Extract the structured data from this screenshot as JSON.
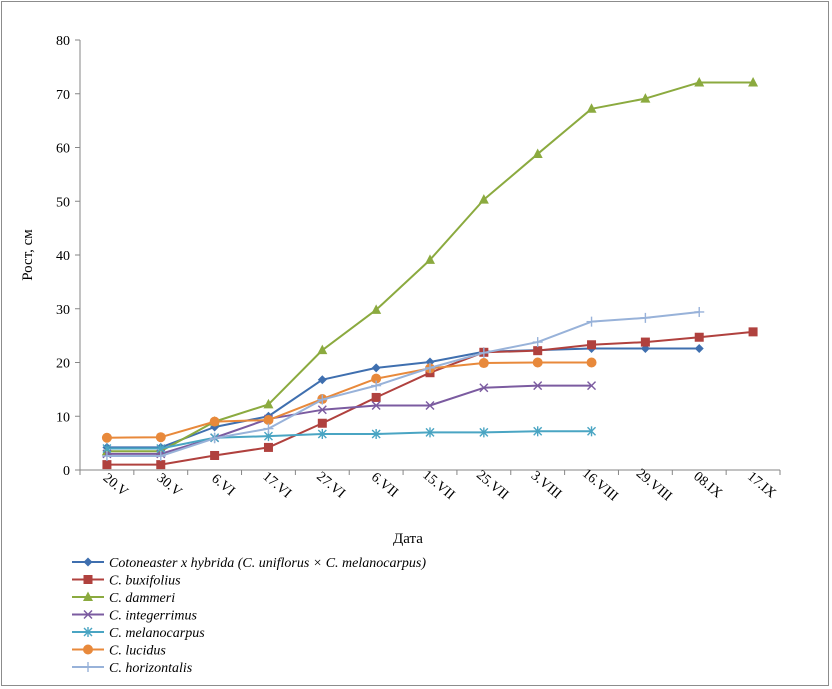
{
  "chart_data": {
    "type": "line",
    "title": "",
    "xlabel": "Дата",
    "ylabel": "Рост, см",
    "ylim": [
      0,
      80
    ],
    "yticks": [
      0,
      10,
      20,
      30,
      40,
      50,
      60,
      70,
      80
    ],
    "categories": [
      "20.V",
      "30.V",
      "6.VI",
      "17.VI",
      "27.VI",
      "6.VII",
      "15.VII",
      "25.VII",
      "3.VIII",
      "16.VIII",
      "29.VIII",
      "08.IX",
      "17.IX"
    ],
    "legend_position": "bottom-left",
    "series": [
      {
        "name": "Cotoneaster x hybrida (C. uniflorus × C. melanocarpus)",
        "color": "#3F6FAF",
        "marker": "diamond",
        "values": [
          4.2,
          4.2,
          8.0,
          10.0,
          16.8,
          19.0,
          20.1,
          22.0,
          22.3,
          22.6,
          22.6,
          22.6,
          null
        ]
      },
      {
        "name": "C. buxifolius",
        "color": "#B0413E",
        "marker": "square",
        "values": [
          1.0,
          1.0,
          2.7,
          4.2,
          8.7,
          13.5,
          18.1,
          21.9,
          22.2,
          23.3,
          23.8,
          24.7,
          25.7
        ]
      },
      {
        "name": "C. dammeri",
        "color": "#8BAA3F",
        "marker": "triangle",
        "values": [
          3.5,
          3.5,
          9.0,
          12.2,
          22.3,
          29.8,
          39.1,
          50.3,
          58.8,
          67.2,
          69.1,
          72.1,
          72.1
        ]
      },
      {
        "name": "C. integerrimus",
        "color": "#7B5BA0",
        "marker": "x",
        "values": [
          3.0,
          3.0,
          6.0,
          9.5,
          11.2,
          12.0,
          12.0,
          15.3,
          15.7,
          15.7,
          null,
          null,
          null
        ]
      },
      {
        "name": "C. melanocarpus",
        "color": "#4AA5C3",
        "marker": "star",
        "values": [
          4.0,
          4.0,
          6.0,
          6.3,
          6.7,
          6.7,
          7.0,
          7.0,
          7.2,
          7.2,
          null,
          null,
          null
        ]
      },
      {
        "name": "C. lucidus",
        "color": "#E8893B",
        "marker": "circle",
        "values": [
          6.0,
          6.1,
          9.0,
          9.3,
          13.2,
          17.0,
          18.9,
          19.9,
          20.0,
          20.0,
          null,
          null,
          null
        ]
      },
      {
        "name": "C. horizontalis",
        "color": "#98B2D9",
        "marker": "plus",
        "values": [
          2.6,
          2.6,
          5.9,
          7.7,
          13.1,
          15.7,
          19.0,
          21.8,
          23.8,
          27.6,
          28.3,
          29.4,
          null
        ]
      }
    ]
  }
}
